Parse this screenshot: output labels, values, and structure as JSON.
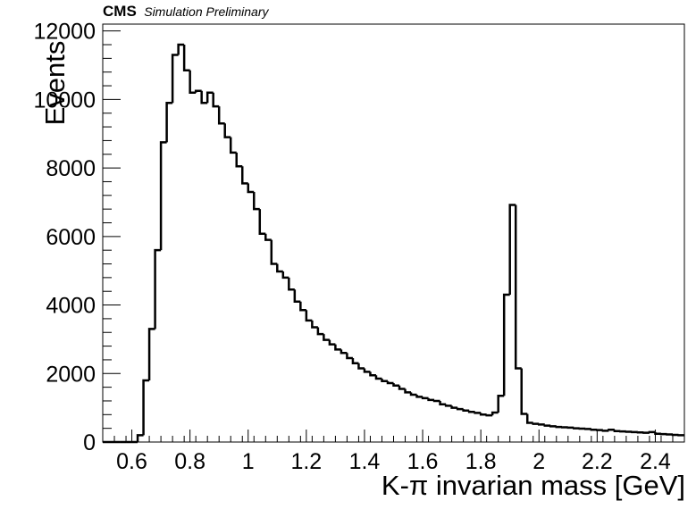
{
  "header": {
    "experiment": "CMS",
    "status": "Simulation Preliminary"
  },
  "chart_data": {
    "type": "histogram",
    "title": "",
    "xlabel": "K-π invarian mass [GeV]",
    "ylabel": "Events",
    "xlim": [
      0.5,
      2.5
    ],
    "ylim": [
      0,
      12200
    ],
    "bin_width": 0.02,
    "bin_start": 0.5,
    "xticks": [
      0.6,
      0.8,
      1,
      1.2,
      1.4,
      1.6,
      1.8,
      2,
      2.2,
      2.4
    ],
    "xtick_labels": [
      "0.6",
      "0.8",
      "1",
      "1.2",
      "1.4",
      "1.6",
      "1.8",
      "2",
      "2.2",
      "2.4"
    ],
    "yticks": [
      0,
      2000,
      4000,
      6000,
      8000,
      10000,
      12000
    ],
    "ytick_labels": [
      "0",
      "2000",
      "4000",
      "6000",
      "8000",
      "10000",
      "12000"
    ],
    "grid": false,
    "legend": "none",
    "line_color": "#000000",
    "values": [
      0,
      0,
      0,
      0,
      0,
      0,
      200,
      1800,
      3300,
      5600,
      8750,
      9900,
      11300,
      11600,
      10850,
      10200,
      10250,
      9900,
      10200,
      9800,
      9300,
      8900,
      8450,
      8050,
      7550,
      7300,
      6800,
      6080,
      5900,
      5200,
      4980,
      4800,
      4450,
      4100,
      3850,
      3550,
      3350,
      3150,
      2980,
      2850,
      2700,
      2600,
      2450,
      2300,
      2150,
      2050,
      1950,
      1850,
      1780,
      1720,
      1650,
      1550,
      1450,
      1380,
      1320,
      1280,
      1230,
      1200,
      1100,
      1060,
      1000,
      960,
      920,
      880,
      850,
      800,
      780,
      860,
      1350,
      4300,
      6920,
      2150,
      820,
      560,
      530,
      510,
      480,
      460,
      440,
      430,
      420,
      400,
      390,
      380,
      360,
      350,
      330,
      360,
      320,
      310,
      300,
      290,
      280,
      270,
      290,
      240,
      230,
      220,
      210,
      200
    ]
  }
}
